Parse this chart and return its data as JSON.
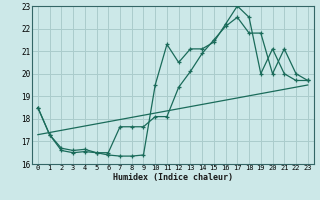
{
  "xlabel": "Humidex (Indice chaleur)",
  "xlim": [
    -0.5,
    23.5
  ],
  "ylim": [
    16,
    23
  ],
  "yticks": [
    16,
    17,
    18,
    19,
    20,
    21,
    22,
    23
  ],
  "xticks": [
    0,
    1,
    2,
    3,
    4,
    5,
    6,
    7,
    8,
    9,
    10,
    11,
    12,
    13,
    14,
    15,
    16,
    17,
    18,
    19,
    20,
    21,
    22,
    23
  ],
  "bg_color": "#cce8e8",
  "line_color": "#1a6b5a",
  "grid_color": "#aacccc",
  "line1_x": [
    0,
    1,
    2,
    3,
    4,
    5,
    6,
    7,
    8,
    9,
    10,
    11,
    12,
    13,
    14,
    15,
    16,
    17,
    18,
    19,
    20,
    21,
    22,
    23
  ],
  "line1_y": [
    18.5,
    17.3,
    16.6,
    16.5,
    16.55,
    16.5,
    16.4,
    16.35,
    16.35,
    16.4,
    19.5,
    21.3,
    20.5,
    21.1,
    21.1,
    21.4,
    22.2,
    23.0,
    22.5,
    20.0,
    21.1,
    20.0,
    19.7,
    19.7
  ],
  "line2_x": [
    0,
    1,
    2,
    3,
    4,
    5,
    6,
    7,
    8,
    9,
    10,
    11,
    12,
    13,
    14,
    15,
    16,
    17,
    18,
    19,
    20,
    21,
    22,
    23
  ],
  "line2_y": [
    18.5,
    17.3,
    16.7,
    16.6,
    16.65,
    16.5,
    16.5,
    17.65,
    17.65,
    17.65,
    18.1,
    18.1,
    19.4,
    20.1,
    20.9,
    21.5,
    22.1,
    22.5,
    21.8,
    21.8,
    20.0,
    21.1,
    20.0,
    19.7
  ],
  "line3_x": [
    0,
    23
  ],
  "line3_y": [
    17.3,
    19.5
  ]
}
